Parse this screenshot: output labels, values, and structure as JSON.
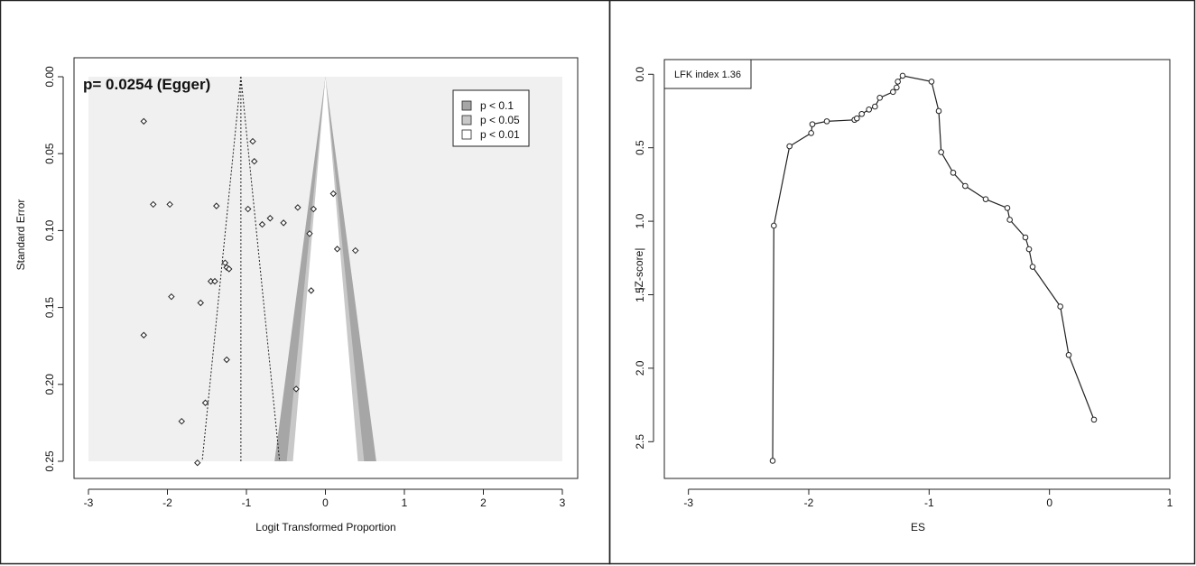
{
  "chart_data": [
    {
      "type": "scatter",
      "subtype": "contour-enhanced funnel plot",
      "annotation": "p= 0.0254 (Egger)",
      "xlabel": "Logit Transformed Proportion",
      "ylabel": "Standard Error",
      "xlim": [
        -3,
        3
      ],
      "ylim": [
        0.25,
        0.0
      ],
      "y_reversed": true,
      "xticks": [
        "-3",
        "-2",
        "-1",
        "0",
        "1",
        "2",
        "3"
      ],
      "yticks": [
        "0.00",
        "0.05",
        "0.10",
        "0.15",
        "0.20",
        "0.25"
      ],
      "pooled_estimate": -1.07,
      "legend": {
        "placement": "top-right",
        "entries": [
          {
            "label": "p < 0.1",
            "color": "#a6a6a6"
          },
          {
            "label": "p < 0.05",
            "color": "#c8c8c8"
          },
          {
            "label": "p < 0.01",
            "color": "#ffffff"
          }
        ]
      },
      "background_color": "#f0f0f0",
      "points": [
        {
          "x": -2.3,
          "y": 0.029
        },
        {
          "x": -2.18,
          "y": 0.083
        },
        {
          "x": -1.97,
          "y": 0.083
        },
        {
          "x": -1.95,
          "y": 0.143
        },
        {
          "x": -2.3,
          "y": 0.168
        },
        {
          "x": -1.38,
          "y": 0.084
        },
        {
          "x": -1.45,
          "y": 0.133
        },
        {
          "x": -1.4,
          "y": 0.133
        },
        {
          "x": -1.27,
          "y": 0.121
        },
        {
          "x": -1.25,
          "y": 0.124
        },
        {
          "x": -1.22,
          "y": 0.125
        },
        {
          "x": -1.58,
          "y": 0.147
        },
        {
          "x": -1.25,
          "y": 0.184
        },
        {
          "x": -1.52,
          "y": 0.212
        },
        {
          "x": -1.82,
          "y": 0.224
        },
        {
          "x": -1.62,
          "y": 0.251
        },
        {
          "x": -0.98,
          "y": 0.086
        },
        {
          "x": -0.92,
          "y": 0.042
        },
        {
          "x": -0.9,
          "y": 0.055
        },
        {
          "x": -0.8,
          "y": 0.096
        },
        {
          "x": -0.7,
          "y": 0.092
        },
        {
          "x": -0.53,
          "y": 0.095
        },
        {
          "x": -0.35,
          "y": 0.085
        },
        {
          "x": -0.2,
          "y": 0.102
        },
        {
          "x": -0.15,
          "y": 0.086
        },
        {
          "x": -0.18,
          "y": 0.139
        },
        {
          "x": -0.37,
          "y": 0.203
        },
        {
          "x": 0.1,
          "y": 0.076
        },
        {
          "x": 0.15,
          "y": 0.112
        },
        {
          "x": 0.38,
          "y": 0.113
        }
      ]
    },
    {
      "type": "line",
      "subtype": "Doi plot",
      "annotation": "LFK index 1.36",
      "xlabel": "ES",
      "ylabel": "|Z-score|",
      "xlim": [
        -3.2,
        1.0
      ],
      "ylim": [
        2.75,
        -0.1
      ],
      "y_reversed": true,
      "xticks": [
        "-3",
        "-2",
        "-1",
        "0",
        "1"
      ],
      "yticks": [
        "0.0",
        "0.5",
        "1.0",
        "1.5",
        "2.0",
        "2.5"
      ],
      "x": [
        -2.3,
        -2.29,
        -2.16,
        -1.98,
        -1.97,
        -1.85,
        -1.62,
        -1.6,
        -1.56,
        -1.5,
        -1.45,
        -1.41,
        -1.3,
        -1.27,
        -1.26,
        -1.22,
        -0.98,
        -0.92,
        -0.9,
        -0.8,
        -0.7,
        -0.53,
        -0.35,
        -0.33,
        -0.2,
        -0.17,
        -0.14,
        0.09,
        0.16,
        0.37
      ],
      "y": [
        2.63,
        1.03,
        0.49,
        0.4,
        0.34,
        0.32,
        0.31,
        0.3,
        0.27,
        0.24,
        0.22,
        0.16,
        0.12,
        0.09,
        0.05,
        0.01,
        0.05,
        0.25,
        0.53,
        0.67,
        0.76,
        0.85,
        0.91,
        0.99,
        1.11,
        1.19,
        1.31,
        1.58,
        1.91,
        2.35
      ]
    }
  ]
}
